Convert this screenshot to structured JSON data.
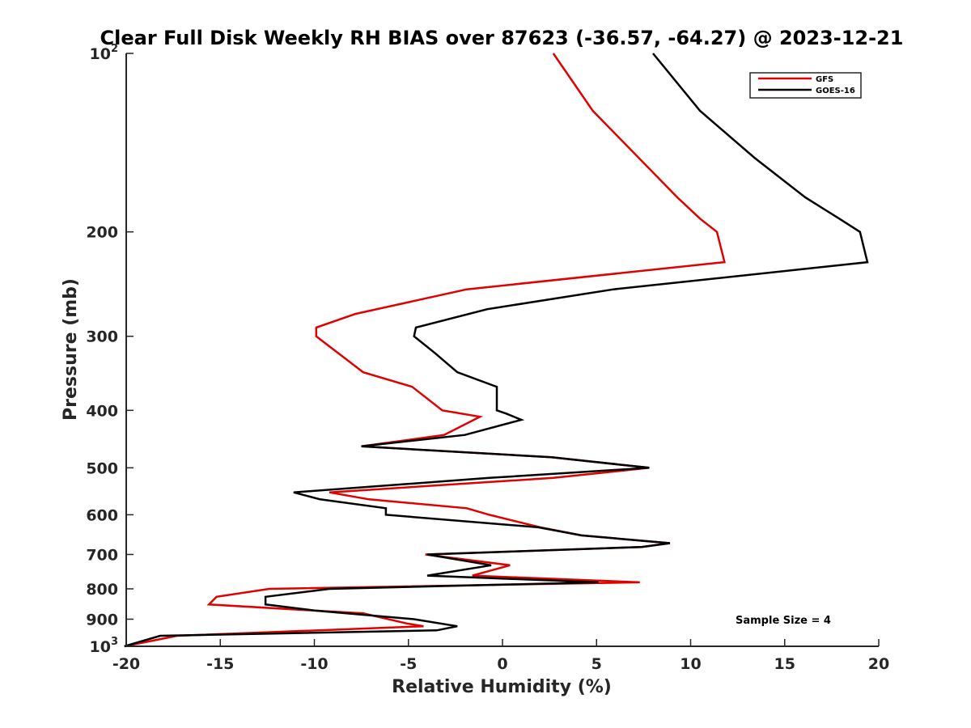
{
  "chart_data": {
    "type": "line",
    "title": "Clear Full Disk Weekly RH BIAS over 87623 (-36.57, -64.27) @ 2023-12-21",
    "xlabel": "Relative Humidity (%)",
    "ylabel": "Pressure (mb)",
    "xlim": [
      -20,
      20
    ],
    "ylim": [
      100,
      1000
    ],
    "y_scale": "log",
    "y_reversed": true,
    "grid": false,
    "legend_position": "top-right",
    "annotation": "Sample Size = 4",
    "x_ticks": [
      {
        "value": -20,
        "label": "-20"
      },
      {
        "value": -15,
        "label": "-15"
      },
      {
        "value": -10,
        "label": "-10"
      },
      {
        "value": -5,
        "label": "-5"
      },
      {
        "value": 0,
        "label": "0"
      },
      {
        "value": 5,
        "label": "5"
      },
      {
        "value": 10,
        "label": "10"
      },
      {
        "value": 15,
        "label": "15"
      },
      {
        "value": 20,
        "label": "20"
      }
    ],
    "y_ticks": [
      {
        "value": 100,
        "label": "10",
        "sup": "2"
      },
      {
        "value": 200,
        "label": "200",
        "sup": ""
      },
      {
        "value": 300,
        "label": "300",
        "sup": ""
      },
      {
        "value": 400,
        "label": "400",
        "sup": ""
      },
      {
        "value": 500,
        "label": "500",
        "sup": ""
      },
      {
        "value": 600,
        "label": "600",
        "sup": ""
      },
      {
        "value": 700,
        "label": "700",
        "sup": ""
      },
      {
        "value": 800,
        "label": "800",
        "sup": ""
      },
      {
        "value": 900,
        "label": "900",
        "sup": ""
      },
      {
        "value": 1000,
        "label": "10",
        "sup": "3"
      }
    ],
    "series": [
      {
        "name": "GFS",
        "color": "#e00000",
        "points": [
          [
            2.7,
            100
          ],
          [
            4.8,
            125
          ],
          [
            9.3,
            175
          ],
          [
            10.5,
            190
          ],
          [
            11.4,
            200
          ],
          [
            11.8,
            225
          ],
          [
            -1.9,
            250
          ],
          [
            -7.8,
            275
          ],
          [
            -9.9,
            290
          ],
          [
            -9.9,
            300
          ],
          [
            -7.4,
            345
          ],
          [
            -4.8,
            365
          ],
          [
            -3.2,
            400
          ],
          [
            -1.2,
            410
          ],
          [
            -3.1,
            440
          ],
          [
            -7.5,
            460
          ],
          [
            2.6,
            480
          ],
          [
            7.8,
            500
          ],
          [
            2.7,
            520
          ],
          [
            -9.2,
            550
          ],
          [
            -7.1,
            565
          ],
          [
            -1.9,
            585
          ],
          [
            -0.7,
            600
          ],
          [
            2.0,
            630
          ],
          [
            4.2,
            650
          ],
          [
            8.9,
            670
          ],
          [
            7.4,
            680
          ],
          [
            -4.1,
            700
          ],
          [
            0.4,
            730
          ],
          [
            -1.6,
            760
          ],
          [
            7.3,
            780
          ],
          [
            -12.4,
            800
          ],
          [
            -15.2,
            825
          ],
          [
            -15.6,
            850
          ],
          [
            -7.4,
            880
          ],
          [
            -5.1,
            915
          ],
          [
            -4.2,
            925
          ],
          [
            -17.3,
            960
          ],
          [
            -20.1,
            1000
          ]
        ]
      },
      {
        "name": "GOES-16",
        "color": "#000000",
        "points": [
          [
            8.0,
            100
          ],
          [
            10.5,
            125
          ],
          [
            13.4,
            150
          ],
          [
            16.1,
            175
          ],
          [
            17.9,
            190
          ],
          [
            19.0,
            200
          ],
          [
            19.4,
            225
          ],
          [
            5.9,
            250
          ],
          [
            -0.8,
            270
          ],
          [
            -4.6,
            290
          ],
          [
            -4.7,
            300
          ],
          [
            -3.6,
            320
          ],
          [
            -2.4,
            345
          ],
          [
            -0.3,
            365
          ],
          [
            -0.3,
            380
          ],
          [
            -0.3,
            400
          ],
          [
            0.2,
            405
          ],
          [
            1.0,
            415
          ],
          [
            -2.0,
            440
          ],
          [
            -7.5,
            460
          ],
          [
            2.6,
            480
          ],
          [
            7.8,
            500
          ],
          [
            -0.7,
            520
          ],
          [
            -11.1,
            550
          ],
          [
            -9.7,
            565
          ],
          [
            -6.2,
            585
          ],
          [
            -6.2,
            600
          ],
          [
            1.9,
            630
          ],
          [
            4.2,
            650
          ],
          [
            8.9,
            670
          ],
          [
            7.4,
            680
          ],
          [
            -4.0,
            700
          ],
          [
            -0.6,
            730
          ],
          [
            -4.0,
            760
          ],
          [
            5.1,
            780
          ],
          [
            -9.2,
            800
          ],
          [
            -12.6,
            825
          ],
          [
            -12.6,
            850
          ],
          [
            -10.0,
            870
          ],
          [
            -4.7,
            900
          ],
          [
            -2.4,
            925
          ],
          [
            -3.5,
            940
          ],
          [
            -18.2,
            960
          ],
          [
            -20.1,
            1000
          ]
        ]
      }
    ]
  }
}
